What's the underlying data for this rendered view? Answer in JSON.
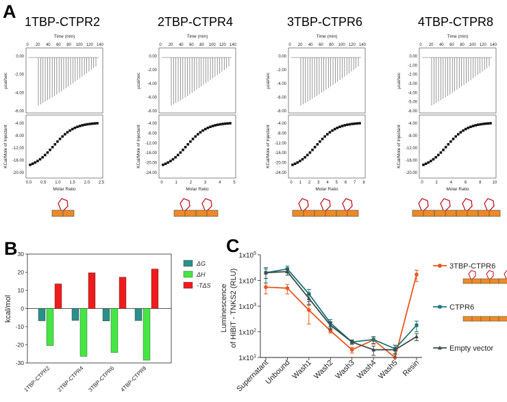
{
  "panels": {
    "a": "A",
    "b": "B",
    "c": "C"
  },
  "colors": {
    "construct": "#ee8a24",
    "loop": "#c0161f",
    "dG": "#2b8f8a",
    "dH": "#44e644",
    "TdS": "#ee1c1c",
    "tbp": "#e8561e",
    "ctpr": "#1f7377",
    "empty": "#3a4a4a"
  },
  "itc": {
    "time_label": "Time (min)",
    "raw_ylabel": "µcal/sec",
    "int_ylabel": "KCal/Mole of Injectant",
    "xlabel": "Molar Ratio",
    "time_ticks": [
      "0",
      "20",
      "40",
      "60",
      "80",
      "100",
      "120",
      "140"
    ],
    "panels": [
      {
        "title": "1TBP-CTPR2",
        "repeats": 2,
        "binders": 1,
        "raw_ticks": [
          "0.00",
          "-2.00",
          "-4.00",
          "-6.00"
        ],
        "int_ticks": [
          "-4.00",
          "-8.00",
          "-12.00",
          "-16.00",
          "-20.00"
        ],
        "molar_ticks": [
          "0.0",
          "0.5",
          "1.0",
          "1.5",
          "2.0",
          "2.5"
        ]
      },
      {
        "title": "2TBP-CTPR4",
        "repeats": 4,
        "binders": 2,
        "raw_ticks": [
          "0.00",
          "-2.00",
          "-4.00",
          "-6.00",
          "-8.00"
        ],
        "int_ticks": [
          "-4.00",
          "-8.00",
          "-12.00",
          "-16.00",
          "-20.00",
          "-24.00"
        ],
        "molar_ticks": [
          "0",
          "1",
          "2",
          "3",
          "4",
          "5"
        ]
      },
      {
        "title": "3TBP-CTPR6",
        "repeats": 6,
        "binders": 3,
        "raw_ticks": [
          "0.00",
          "-2.00",
          "-4.00",
          "-6.00",
          "-8.00"
        ],
        "int_ticks": [
          "-4.00",
          "-8.00",
          "-12.00",
          "-16.00",
          "-20.00",
          "-24.00"
        ],
        "molar_ticks": [
          "0",
          "1",
          "2",
          "3",
          "4",
          "5",
          "6",
          "7",
          "8"
        ]
      },
      {
        "title": "4TBP-CTPR8",
        "repeats": 8,
        "binders": 4,
        "raw_ticks": [
          "0.00",
          "-1.00",
          "-2.00",
          "-3.00",
          "-4.00",
          "-5.00",
          "-6.00"
        ],
        "int_ticks": [
          "-4.00",
          "-8.00",
          "-12.00",
          "-16.00",
          "-20.00"
        ],
        "molar_ticks": [
          "0",
          "2",
          "4",
          "6",
          "8",
          "10"
        ]
      }
    ]
  },
  "chart_data": [
    {
      "type": "bar",
      "panel": "B",
      "ylabel": "kcal/mol",
      "ylim": [
        -30,
        30
      ],
      "yticks": [
        "30",
        "20",
        "10",
        "0",
        "-10",
        "-20",
        "-30"
      ],
      "categories": [
        "1TBP-CTPR2",
        "2TBP-CTPR4",
        "3TBP-CTPR6",
        "4TBP-CTPR8"
      ],
      "series": [
        {
          "name": "ΔG",
          "values": [
            -6.8,
            -6.6,
            -6.9,
            -6.7
          ]
        },
        {
          "name": "ΔH",
          "values": [
            -20.4,
            -26.4,
            -24.3,
            -28.5
          ]
        },
        {
          "name": "-TΔS",
          "values": [
            13.6,
            19.7,
            17.3,
            21.8
          ]
        }
      ]
    },
    {
      "type": "line",
      "panel": "C",
      "ylabel": "Luminescence of HiBiT - TNKS2 (RLU)",
      "yscale": "log",
      "ylim": [
        10,
        100000
      ],
      "yticks": [
        "1x10^5",
        "1x10^4",
        "1x10^3",
        "1x10^2",
        "1x10^1"
      ],
      "categories": [
        "Supernatant",
        "Unbound",
        "Wash1",
        "Wash2",
        "Wash3",
        "Wash4",
        "Wash5",
        "Resin"
      ],
      "series": [
        {
          "name": "3TBP-CTPR6",
          "values": [
            5500,
            5000,
            700,
            110,
            20,
            48,
            10,
            17000
          ],
          "errors": [
            2500,
            2000,
            500,
            20,
            5,
            15,
            3,
            8000
          ]
        },
        {
          "name": "CTPR6",
          "values": [
            20000,
            28000,
            3000,
            220,
            40,
            50,
            22,
            180
          ],
          "errors": [
            12000,
            8000,
            1500,
            80,
            8,
            15,
            8,
            80
          ]
        },
        {
          "name": "Empty vector",
          "values": [
            20000,
            22000,
            2000,
            180,
            40,
            20,
            20,
            65
          ],
          "errors": [
            8000,
            6000,
            900,
            60,
            8,
            8,
            10,
            20
          ]
        }
      ]
    }
  ]
}
